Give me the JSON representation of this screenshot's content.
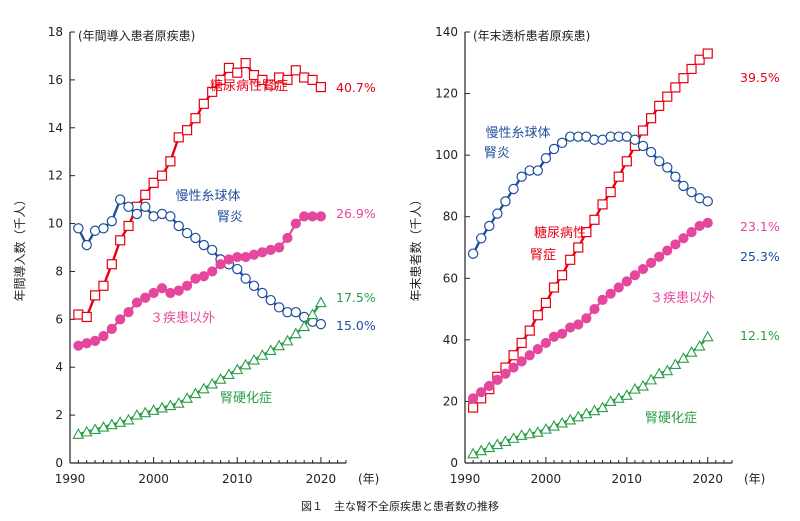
{
  "caption": "図１　主な腎不全原疾患と患者数の推移",
  "chart_data": [
    {
      "type": "line",
      "title": "(年間導入患者原疾患)",
      "ylabel": "年間導入数（千人）",
      "xlabel": "(年)",
      "xlim": [
        1990,
        2023
      ],
      "ylim": [
        0,
        18
      ],
      "xticks": [
        1990,
        2000,
        2010,
        2020
      ],
      "yticks": [
        0,
        2,
        4,
        6,
        8,
        10,
        12,
        14,
        16,
        18
      ],
      "x": [
        1991,
        1992,
        1993,
        1994,
        1995,
        1996,
        1997,
        1998,
        1999,
        2000,
        2001,
        2002,
        2003,
        2004,
        2005,
        2006,
        2007,
        2008,
        2009,
        2010,
        2011,
        2012,
        2013,
        2014,
        2015,
        2016,
        2017,
        2018,
        2019,
        2020
      ],
      "series": [
        {
          "name": "糖尿病性腎症",
          "color": "#e60012",
          "marker": "square-open",
          "values": [
            6.2,
            6.1,
            7.0,
            7.4,
            8.3,
            9.3,
            9.9,
            10.7,
            11.2,
            11.7,
            12.0,
            12.6,
            13.6,
            13.9,
            14.4,
            15.0,
            15.5,
            16.0,
            16.5,
            16.3,
            16.7,
            16.2,
            16.0,
            15.8,
            16.1,
            16.0,
            16.4,
            16.1,
            16.0,
            15.7
          ],
          "end_label": "40.7%"
        },
        {
          "name": "慢性糸球体腎炎",
          "color": "#1e4f9c",
          "marker": "circle-open",
          "values": [
            9.8,
            9.1,
            9.7,
            9.8,
            10.1,
            11.0,
            10.7,
            10.4,
            10.7,
            10.3,
            10.4,
            10.3,
            9.9,
            9.6,
            9.4,
            9.1,
            8.9,
            8.5,
            8.3,
            8.1,
            7.7,
            7.4,
            7.1,
            6.8,
            6.5,
            6.3,
            6.3,
            6.1,
            5.9,
            5.8
          ],
          "label_lines": [
            "慢性糸球体",
            "腎炎"
          ],
          "end_label": "15.0%"
        },
        {
          "name": "３疾患以外",
          "color": "#e4479b",
          "marker": "circle-filled",
          "values": [
            4.9,
            5.0,
            5.1,
            5.3,
            5.6,
            6.0,
            6.3,
            6.7,
            6.9,
            7.1,
            7.3,
            7.1,
            7.2,
            7.4,
            7.7,
            7.8,
            8.0,
            8.3,
            8.5,
            8.6,
            8.6,
            8.7,
            8.8,
            8.9,
            9.0,
            9.4,
            10.0,
            10.3,
            10.3,
            10.3
          ],
          "end_label": "26.9%"
        },
        {
          "name": "腎硬化症",
          "color": "#2a9e48",
          "marker": "triangle-open",
          "values": [
            1.2,
            1.3,
            1.4,
            1.5,
            1.6,
            1.7,
            1.8,
            2.0,
            2.1,
            2.2,
            2.3,
            2.4,
            2.5,
            2.7,
            2.9,
            3.1,
            3.3,
            3.5,
            3.7,
            3.9,
            4.1,
            4.3,
            4.5,
            4.7,
            4.9,
            5.1,
            5.4,
            5.7,
            6.2,
            6.7
          ],
          "end_label": "17.5%"
        }
      ]
    },
    {
      "type": "line",
      "title": "(年末透析患者原疾患)",
      "ylabel": "年末患者数（千人）",
      "xlabel": "(年)",
      "xlim": [
        1990,
        2023
      ],
      "ylim": [
        0,
        140
      ],
      "xticks": [
        1990,
        2000,
        2010,
        2020
      ],
      "yticks": [
        0,
        20,
        40,
        60,
        80,
        100,
        120,
        140
      ],
      "x": [
        1991,
        1992,
        1993,
        1994,
        1995,
        1996,
        1997,
        1998,
        1999,
        2000,
        2001,
        2002,
        2003,
        2004,
        2005,
        2006,
        2007,
        2008,
        2009,
        2010,
        2011,
        2012,
        2013,
        2014,
        2015,
        2016,
        2017,
        2018,
        2019,
        2020
      ],
      "series": [
        {
          "name": "糖尿病性腎症",
          "color": "#e60012",
          "marker": "square-open",
          "values": [
            18,
            21,
            24,
            28,
            31,
            35,
            39,
            43,
            48,
            52,
            57,
            61,
            66,
            70,
            75,
            79,
            84,
            88,
            93,
            98,
            103,
            108,
            112,
            116,
            119,
            122,
            125,
            128,
            131,
            133
          ],
          "label_lines": [
            "糖尿病性",
            "腎症"
          ],
          "end_label": "39.5%"
        },
        {
          "name": "慢性糸球体腎炎",
          "color": "#1e4f9c",
          "marker": "circle-open",
          "values": [
            68,
            73,
            77,
            81,
            85,
            89,
            93,
            95,
            95,
            99,
            102,
            104,
            106,
            106,
            106,
            105,
            105,
            106,
            106,
            106,
            105,
            103,
            101,
            98,
            96,
            93,
            90,
            88,
            86,
            85
          ],
          "label_lines": [
            "慢性糸球体",
            "腎炎"
          ],
          "end_label": "25.3%"
        },
        {
          "name": "３疾患以外",
          "color": "#e4479b",
          "marker": "circle-filled",
          "values": [
            21,
            23,
            25,
            27,
            29,
            31,
            33,
            35,
            37,
            39,
            41,
            42,
            44,
            45,
            47,
            50,
            53,
            55,
            57,
            59,
            61,
            63,
            65,
            67,
            69,
            71,
            73,
            75,
            77,
            78
          ],
          "end_label": "23.1%"
        },
        {
          "name": "腎硬化症",
          "color": "#2a9e48",
          "marker": "triangle-open",
          "values": [
            3,
            4,
            5,
            6,
            7,
            8,
            9,
            9.5,
            10,
            11,
            12,
            13,
            14,
            15,
            16,
            17,
            18,
            20,
            21,
            22,
            24,
            25,
            27,
            29,
            30,
            32,
            34,
            36,
            38,
            41
          ],
          "end_label": "12.1%"
        }
      ]
    }
  ]
}
